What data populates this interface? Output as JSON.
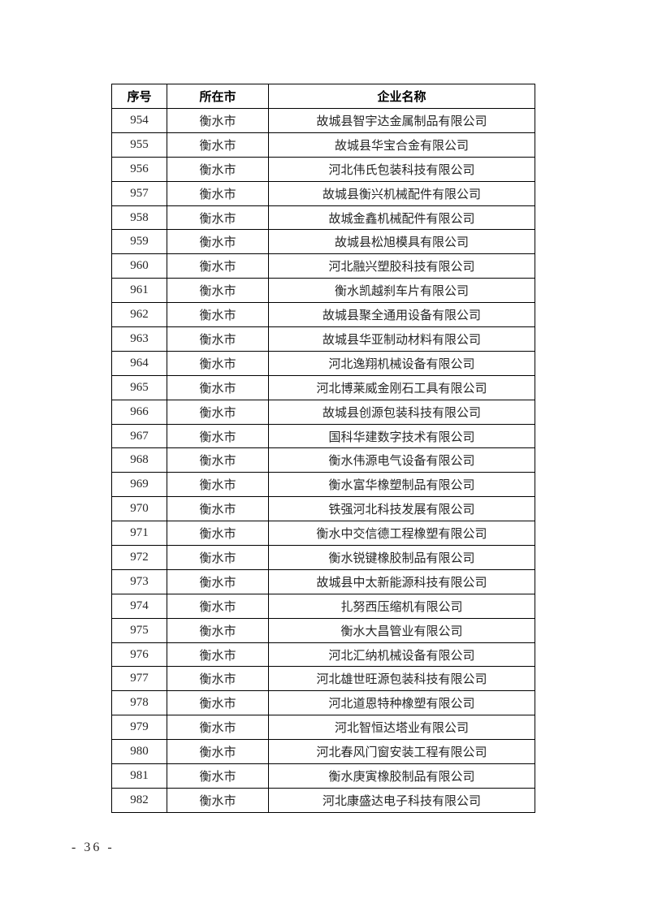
{
  "page": {
    "number_label": "- 36 -"
  },
  "table": {
    "headers": [
      "序号",
      "所在市",
      "企业名称"
    ],
    "rows": [
      {
        "no": "954",
        "city": "衡水市",
        "company": "故城县智宇达金属制品有限公司"
      },
      {
        "no": "955",
        "city": "衡水市",
        "company": "故城县华宝合金有限公司"
      },
      {
        "no": "956",
        "city": "衡水市",
        "company": "河北伟氏包装科技有限公司"
      },
      {
        "no": "957",
        "city": "衡水市",
        "company": "故城县衡兴机械配件有限公司"
      },
      {
        "no": "958",
        "city": "衡水市",
        "company": "故城金鑫机械配件有限公司"
      },
      {
        "no": "959",
        "city": "衡水市",
        "company": "故城县松旭模具有限公司"
      },
      {
        "no": "960",
        "city": "衡水市",
        "company": "河北融兴塑胶科技有限公司"
      },
      {
        "no": "961",
        "city": "衡水市",
        "company": "衡水凯越刹车片有限公司"
      },
      {
        "no": "962",
        "city": "衡水市",
        "company": "故城县聚全通用设备有限公司"
      },
      {
        "no": "963",
        "city": "衡水市",
        "company": "故城县华亚制动材料有限公司"
      },
      {
        "no": "964",
        "city": "衡水市",
        "company": "河北逸翔机械设备有限公司"
      },
      {
        "no": "965",
        "city": "衡水市",
        "company": "河北博莱威金刚石工具有限公司"
      },
      {
        "no": "966",
        "city": "衡水市",
        "company": "故城县创源包装科技有限公司"
      },
      {
        "no": "967",
        "city": "衡水市",
        "company": "国科华建数字技术有限公司"
      },
      {
        "no": "968",
        "city": "衡水市",
        "company": "衡水伟源电气设备有限公司"
      },
      {
        "no": "969",
        "city": "衡水市",
        "company": "衡水富华橡塑制品有限公司"
      },
      {
        "no": "970",
        "city": "衡水市",
        "company": "铁强河北科技发展有限公司"
      },
      {
        "no": "971",
        "city": "衡水市",
        "company": "衡水中交信德工程橡塑有限公司"
      },
      {
        "no": "972",
        "city": "衡水市",
        "company": "衡水锐键橡胶制品有限公司"
      },
      {
        "no": "973",
        "city": "衡水市",
        "company": "故城县中太新能源科技有限公司"
      },
      {
        "no": "974",
        "city": "衡水市",
        "company": "扎努西压缩机有限公司"
      },
      {
        "no": "975",
        "city": "衡水市",
        "company": "衡水大昌管业有限公司"
      },
      {
        "no": "976",
        "city": "衡水市",
        "company": "河北汇纳机械设备有限公司"
      },
      {
        "no": "977",
        "city": "衡水市",
        "company": "河北雄世旺源包装科技有限公司"
      },
      {
        "no": "978",
        "city": "衡水市",
        "company": "河北道恩特种橡塑有限公司"
      },
      {
        "no": "979",
        "city": "衡水市",
        "company": "河北智恒达塔业有限公司"
      },
      {
        "no": "980",
        "city": "衡水市",
        "company": "河北春风门窗安装工程有限公司"
      },
      {
        "no": "981",
        "city": "衡水市",
        "company": "衡水庚寅橡胶制品有限公司"
      },
      {
        "no": "982",
        "city": "衡水市",
        "company": "河北康盛达电子科技有限公司"
      }
    ]
  }
}
